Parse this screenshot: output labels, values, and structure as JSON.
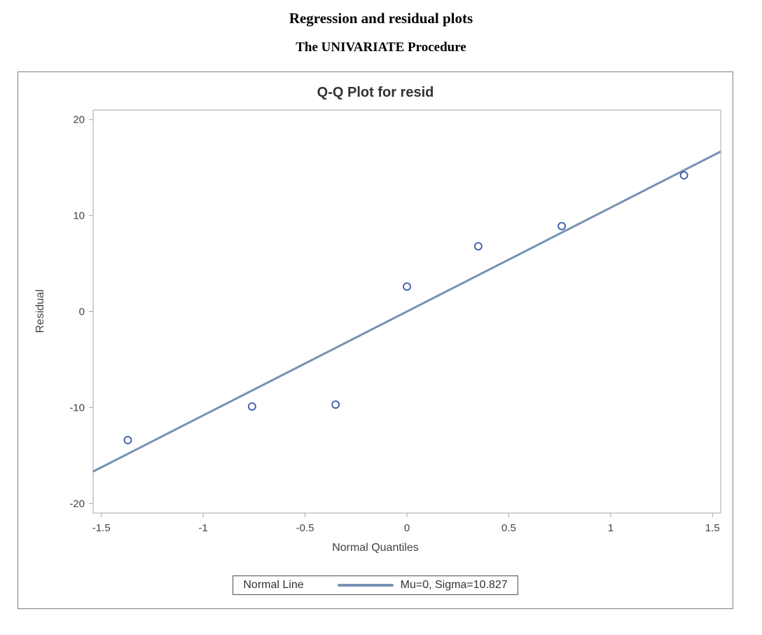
{
  "page": {
    "report_title": "Regression and residual plots",
    "procedure_title": "The UNIVARIATE Procedure"
  },
  "chart_data": {
    "type": "scatter",
    "title": "Q-Q Plot for resid",
    "xlabel": "Normal Quantiles",
    "ylabel": "Residual",
    "xlim": [
      -1.54,
      1.54
    ],
    "ylim": [
      -21,
      21
    ],
    "x_ticks": [
      -1.5,
      -1,
      -0.5,
      0,
      0.5,
      1,
      1.5
    ],
    "x_tick_labels": [
      "-1.5",
      "-1",
      "-0.5",
      "0",
      "0.5",
      "1",
      "1.5"
    ],
    "y_ticks": [
      -20,
      -10,
      0,
      10,
      20
    ],
    "y_tick_labels": [
      "-20",
      "-10",
      "0",
      "10",
      "20"
    ],
    "grid": false,
    "frame": true,
    "legend_position": "bottom",
    "points": [
      [
        -1.37,
        -13.4
      ],
      [
        -0.76,
        -9.9
      ],
      [
        -0.35,
        -9.7
      ],
      [
        0.0,
        2.6
      ],
      [
        0.35,
        6.8
      ],
      [
        0.76,
        8.9
      ],
      [
        1.36,
        14.2
      ]
    ],
    "normal_line": {
      "mu": 0,
      "sigma": 10.827
    },
    "legend": {
      "title": "Normal Line",
      "entry": "Mu=0, Sigma=10.827"
    },
    "colors": {
      "marker": "#3c57ab",
      "line": "#7891b4",
      "frame": "#a6a6a6",
      "tick_text": "#424242",
      "panel_border": "#7f7f7f"
    }
  }
}
